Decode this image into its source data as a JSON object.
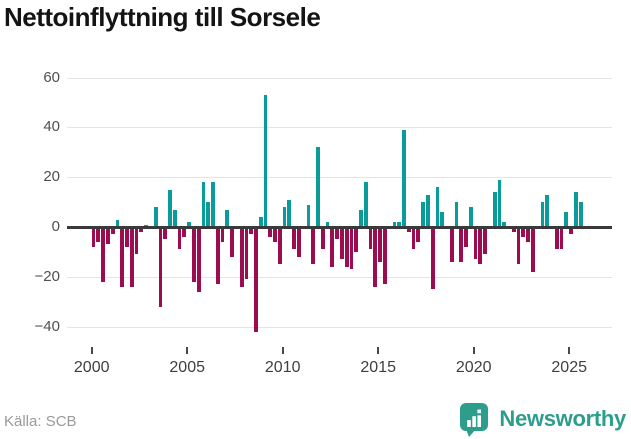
{
  "header": {
    "title": "Nettoinflyttning till Sorsele"
  },
  "footer": {
    "source": "Källa: SCB",
    "brand": "Newsworthy"
  },
  "colors": {
    "positive": "#0a9c9a",
    "negative": "#9b0d50",
    "zero_line": "#3a3a3a",
    "grid": "#e4e4e4",
    "brand": "#2e9e8c"
  },
  "chart_data": {
    "type": "bar",
    "title": "Nettoinflyttning till Sorsele",
    "xlabel": "",
    "ylabel": "",
    "period": "quarterly",
    "x_start": "2000Q1",
    "x_end": "2025Q3",
    "ylim": [
      -50,
      65
    ],
    "y_ticks": [
      60,
      40,
      20,
      0,
      -20,
      -40
    ],
    "x_ticks": [
      2000,
      2005,
      2010,
      2015,
      2020,
      2025
    ],
    "grid": "horizontal",
    "legend": "none",
    "series": [
      {
        "name": "Nettoinflyttning",
        "values": [
          -8,
          -6,
          -22,
          -7,
          -3,
          3,
          -24,
          -8,
          -24,
          -11,
          -2,
          1,
          0,
          8,
          -32,
          -5,
          15,
          7,
          -9,
          -4,
          2,
          -22,
          -26,
          18,
          10,
          18,
          -23,
          -6,
          7,
          -12,
          -1,
          -24,
          -21,
          -3,
          -42,
          4,
          53,
          -4,
          -6,
          -15,
          8,
          11,
          -9,
          -12,
          0,
          9,
          -15,
          32,
          -9,
          2,
          -16,
          -5,
          -13,
          -16,
          -17,
          -10,
          7,
          18,
          -9,
          -24,
          -14,
          -23,
          0,
          2,
          2,
          39,
          -2,
          -9,
          -6,
          10,
          13,
          -25,
          16,
          6,
          0,
          -14,
          10,
          -14,
          -8,
          8,
          -13,
          -15,
          -11,
          0,
          14,
          19,
          2,
          0,
          -2,
          -15,
          -4,
          -6,
          -18,
          0,
          10,
          13,
          0,
          -9,
          -9,
          6,
          -3,
          14,
          10
        ]
      }
    ]
  }
}
